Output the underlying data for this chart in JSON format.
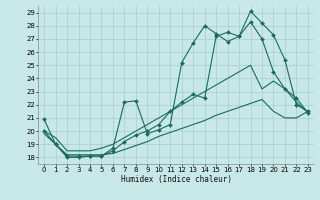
{
  "xlabel": "Humidex (Indice chaleur)",
  "bg_color": "#c8e8e8",
  "line_color": "#1a6b5a",
  "grid_color": "#a8cccc",
  "xlim": [
    -0.5,
    23.5
  ],
  "ylim": [
    17.5,
    29.5
  ],
  "xticks": [
    0,
    1,
    2,
    3,
    4,
    5,
    6,
    7,
    8,
    9,
    10,
    11,
    12,
    13,
    14,
    15,
    16,
    17,
    18,
    19,
    20,
    21,
    22,
    23
  ],
  "yticks": [
    18,
    19,
    20,
    21,
    22,
    23,
    24,
    25,
    26,
    27,
    28,
    29
  ],
  "lines": [
    {
      "x": [
        0,
        1,
        2,
        3,
        4,
        5,
        6,
        7,
        8,
        9,
        10,
        11,
        12,
        13,
        14,
        15,
        16,
        17,
        18,
        19,
        20,
        21,
        22,
        23
      ],
      "y": [
        20.9,
        19.0,
        18.0,
        18.0,
        18.1,
        18.1,
        18.7,
        22.2,
        22.3,
        19.8,
        20.1,
        20.5,
        25.2,
        26.7,
        28.0,
        27.4,
        26.8,
        27.2,
        29.1,
        28.2,
        27.3,
        25.4,
        22.0,
        21.5
      ],
      "marker": true
    },
    {
      "x": [
        0,
        1,
        2,
        3,
        4,
        5,
        6,
        7,
        8,
        9,
        10,
        11,
        12,
        13,
        14,
        15,
        16,
        17,
        18,
        19,
        20,
        21,
        22,
        23
      ],
      "y": [
        20.0,
        19.0,
        18.1,
        18.1,
        18.1,
        18.1,
        18.5,
        19.2,
        19.7,
        20.0,
        20.5,
        21.5,
        22.2,
        22.8,
        22.5,
        27.2,
        27.5,
        27.2,
        28.3,
        27.0,
        24.5,
        23.2,
        22.5,
        21.4
      ],
      "marker": true
    },
    {
      "x": [
        0,
        1,
        2,
        3,
        4,
        5,
        6,
        7,
        8,
        9,
        10,
        11,
        12,
        13,
        14,
        15,
        16,
        17,
        18,
        19,
        20,
        21,
        22,
        23
      ],
      "y": [
        20.0,
        19.5,
        18.5,
        18.5,
        18.5,
        18.7,
        19.0,
        19.5,
        20.0,
        20.5,
        21.0,
        21.5,
        22.0,
        22.5,
        23.0,
        23.5,
        24.0,
        24.5,
        25.0,
        23.2,
        23.8,
        23.2,
        22.2,
        21.4
      ],
      "marker": false
    },
    {
      "x": [
        0,
        1,
        2,
        3,
        4,
        5,
        6,
        7,
        8,
        9,
        10,
        11,
        12,
        13,
        14,
        15,
        16,
        17,
        18,
        19,
        20,
        21,
        22,
        23
      ],
      "y": [
        19.8,
        19.0,
        18.2,
        18.2,
        18.2,
        18.2,
        18.3,
        18.6,
        18.9,
        19.2,
        19.6,
        19.9,
        20.2,
        20.5,
        20.8,
        21.2,
        21.5,
        21.8,
        22.1,
        22.4,
        21.5,
        21.0,
        21.0,
        21.5
      ],
      "marker": false
    }
  ]
}
